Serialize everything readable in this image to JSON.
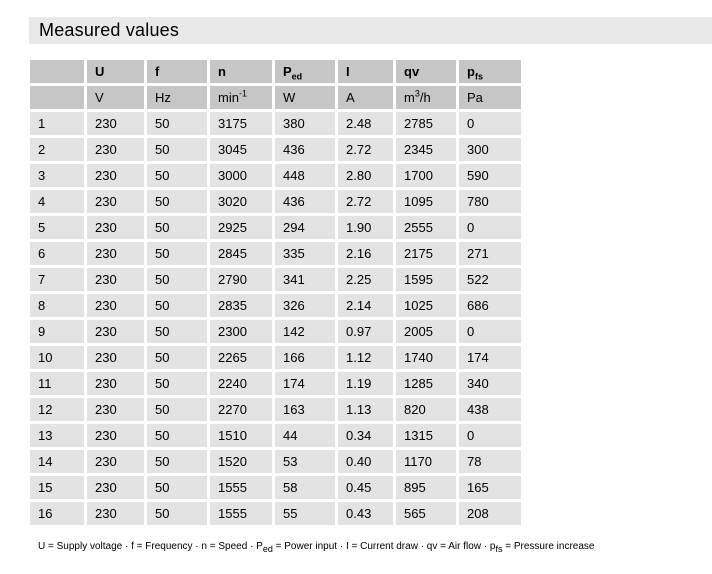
{
  "colors": {
    "title_bar_bg": "#e9e9e9",
    "header_cell_bg": "#c6c6c6",
    "data_cell_bg": "#e3e3e3",
    "text": "#000000",
    "page_bg": "#ffffff"
  },
  "title": "Measured values",
  "table": {
    "header": [
      {
        "parts": []
      },
      {
        "parts": [
          {
            "t": "U"
          }
        ]
      },
      {
        "parts": [
          {
            "t": "f"
          }
        ]
      },
      {
        "parts": [
          {
            "t": "n"
          }
        ]
      },
      {
        "parts": [
          {
            "t": "P"
          },
          {
            "t": "ed",
            "s": "sub"
          }
        ]
      },
      {
        "parts": [
          {
            "t": "I"
          }
        ]
      },
      {
        "parts": [
          {
            "t": "qv"
          }
        ]
      },
      {
        "parts": [
          {
            "t": "p"
          },
          {
            "t": "fs",
            "s": "sub"
          }
        ]
      }
    ],
    "units": [
      {
        "parts": []
      },
      {
        "parts": [
          {
            "t": "V"
          }
        ]
      },
      {
        "parts": [
          {
            "t": "Hz"
          }
        ]
      },
      {
        "parts": [
          {
            "t": "min"
          },
          {
            "t": "-1",
            "s": "sup"
          }
        ]
      },
      {
        "parts": [
          {
            "t": "W"
          }
        ]
      },
      {
        "parts": [
          {
            "t": "A"
          }
        ]
      },
      {
        "parts": [
          {
            "t": "m"
          },
          {
            "t": "3",
            "s": "sup"
          },
          {
            "t": "/h"
          }
        ]
      },
      {
        "parts": [
          {
            "t": "Pa"
          }
        ]
      }
    ],
    "rows": [
      [
        "1",
        "230",
        "50",
        "3175",
        "380",
        "2.48",
        "2785",
        "0"
      ],
      [
        "2",
        "230",
        "50",
        "3045",
        "436",
        "2.72",
        "2345",
        "300"
      ],
      [
        "3",
        "230",
        "50",
        "3000",
        "448",
        "2.80",
        "1700",
        "590"
      ],
      [
        "4",
        "230",
        "50",
        "3020",
        "436",
        "2.72",
        "1095",
        "780"
      ],
      [
        "5",
        "230",
        "50",
        "2925",
        "294",
        "1.90",
        "2555",
        "0"
      ],
      [
        "6",
        "230",
        "50",
        "2845",
        "335",
        "2.16",
        "2175",
        "271"
      ],
      [
        "7",
        "230",
        "50",
        "2790",
        "341",
        "2.25",
        "1595",
        "522"
      ],
      [
        "8",
        "230",
        "50",
        "2835",
        "326",
        "2.14",
        "1025",
        "686"
      ],
      [
        "9",
        "230",
        "50",
        "2300",
        "142",
        "0.97",
        "2005",
        "0"
      ],
      [
        "10",
        "230",
        "50",
        "2265",
        "166",
        "1.12",
        "1740",
        "174"
      ],
      [
        "11",
        "230",
        "50",
        "2240",
        "174",
        "1.19",
        "1285",
        "340"
      ],
      [
        "12",
        "230",
        "50",
        "2270",
        "163",
        "1.13",
        "820",
        "438"
      ],
      [
        "13",
        "230",
        "50",
        "1510",
        "44",
        "0.34",
        "1315",
        "0"
      ],
      [
        "14",
        "230",
        "50",
        "1520",
        "53",
        "0.40",
        "1170",
        "78"
      ],
      [
        "15",
        "230",
        "50",
        "1555",
        "58",
        "0.45",
        "895",
        "165"
      ],
      [
        "16",
        "230",
        "50",
        "1555",
        "55",
        "0.43",
        "565",
        "208"
      ]
    ]
  },
  "legend": {
    "parts": [
      {
        "t": "U = Supply voltage · f = Frequency · n = Speed · P"
      },
      {
        "t": "ed",
        "s": "sub"
      },
      {
        "t": " = Power input · I = Current draw · qv = Air flow · p"
      },
      {
        "t": "fs",
        "s": "sub"
      },
      {
        "t": " = Pressure increase"
      }
    ]
  }
}
